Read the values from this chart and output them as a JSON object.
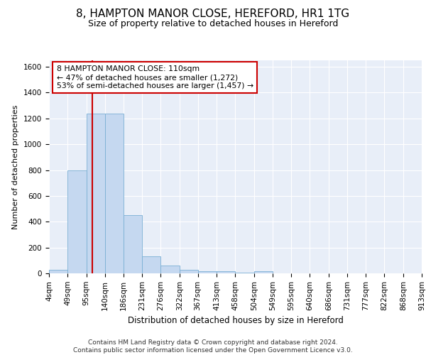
{
  "title": "8, HAMPTON MANOR CLOSE, HEREFORD, HR1 1TG",
  "subtitle": "Size of property relative to detached houses in Hereford",
  "xlabel": "Distribution of detached houses by size in Hereford",
  "ylabel": "Number of detached properties",
  "bar_values": [
    25,
    800,
    1240,
    1240,
    450,
    130,
    60,
    25,
    15,
    15,
    5,
    15,
    2,
    2,
    1,
    1,
    1,
    0,
    0,
    0
  ],
  "bin_edges": [
    4,
    49,
    95,
    140,
    186,
    231,
    276,
    322,
    367,
    413,
    458,
    504,
    549,
    595,
    640,
    686,
    731,
    777,
    822,
    868,
    913
  ],
  "tick_labels": [
    "4sqm",
    "49sqm",
    "95sqm",
    "140sqm",
    "186sqm",
    "231sqm",
    "276sqm",
    "322sqm",
    "367sqm",
    "413sqm",
    "458sqm",
    "504sqm",
    "549sqm",
    "595sqm",
    "640sqm",
    "686sqm",
    "731sqm",
    "777sqm",
    "822sqm",
    "868sqm",
    "913sqm"
  ],
  "bar_color": "#c5d8f0",
  "bar_edge_color": "#7aafd4",
  "red_line_x": 110,
  "annotation_text": "8 HAMPTON MANOR CLOSE: 110sqm\n← 47% of detached houses are smaller (1,272)\n53% of semi-detached houses are larger (1,457) →",
  "annotation_box_color": "#ffffff",
  "annotation_box_edge": "#cc0000",
  "annotation_text_color": "#000000",
  "red_line_color": "#cc0000",
  "ylim": [
    0,
    1650
  ],
  "yticks": [
    0,
    200,
    400,
    600,
    800,
    1000,
    1200,
    1400,
    1600
  ],
  "bg_color": "#e8eef8",
  "grid_color": "#ffffff",
  "footer_line1": "Contains HM Land Registry data © Crown copyright and database right 2024.",
  "footer_line2": "Contains public sector information licensed under the Open Government Licence v3.0.",
  "title_fontsize": 11,
  "subtitle_fontsize": 9,
  "ylabel_fontsize": 8,
  "xlabel_fontsize": 8.5,
  "tick_fontsize": 7.5,
  "footer_fontsize": 6.5
}
